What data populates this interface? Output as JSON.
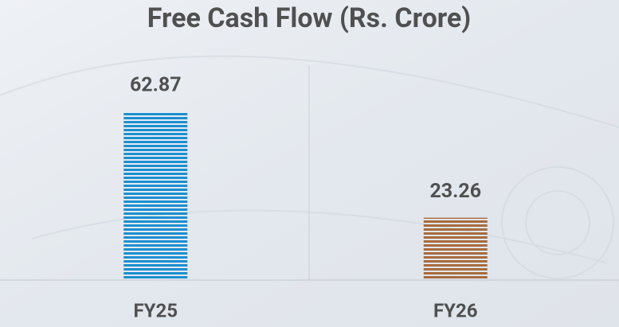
{
  "chart_data": {
    "type": "bar",
    "title": "Free Cash Flow (Rs. Crore)",
    "categories": [
      "FY25",
      "FY26"
    ],
    "values": [
      62.87,
      23.26
    ],
    "colors": [
      "#1b8fd0",
      "#a86b3d"
    ],
    "grid": false
  }
}
